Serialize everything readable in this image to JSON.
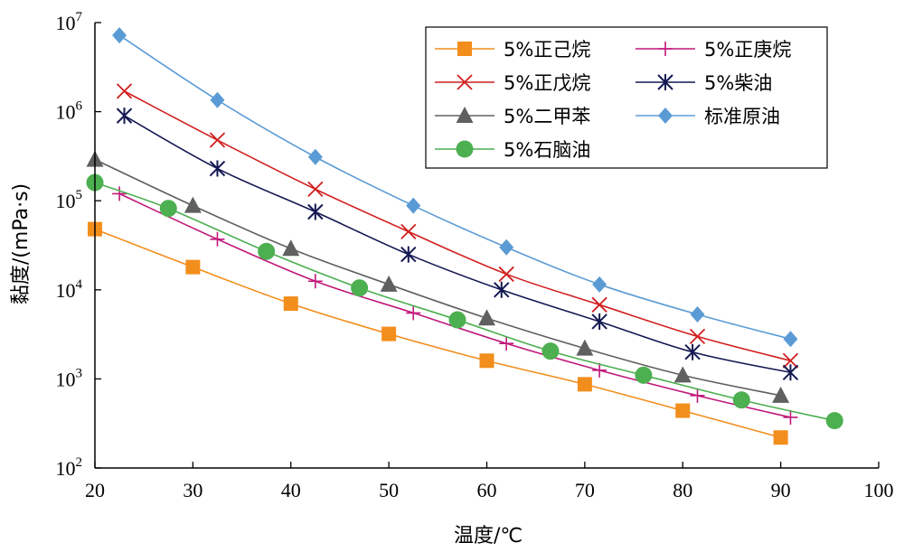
{
  "chart_data": {
    "type": "line",
    "xlabel": "温度/℃",
    "ylabel": "黏度/(mPa·s)",
    "xlim": [
      20,
      100
    ],
    "ylim": [
      100,
      10000000
    ],
    "yscale": "log",
    "x_ticks": [
      "20",
      "30",
      "40",
      "50",
      "60",
      "70",
      "80",
      "90",
      "100"
    ],
    "x_tick_values": [
      20,
      30,
      40,
      50,
      60,
      70,
      80,
      90,
      100
    ],
    "y_ticks": [
      {
        "base": "10",
        "exp": "2",
        "value": 100
      },
      {
        "base": "10",
        "exp": "3",
        "value": 1000
      },
      {
        "base": "10",
        "exp": "4",
        "value": 10000
      },
      {
        "base": "10",
        "exp": "5",
        "value": 100000
      },
      {
        "base": "10",
        "exp": "6",
        "value": 1000000
      },
      {
        "base": "10",
        "exp": "7",
        "value": 10000000
      }
    ],
    "grid": false,
    "legend_position": "top-right",
    "series": [
      {
        "name": "5%正己烷",
        "color": "#f28e1c",
        "marker": "square",
        "x": [
          20,
          30,
          40,
          50,
          60,
          70,
          80,
          90
        ],
        "y": [
          48000,
          18000,
          7000,
          3200,
          1600,
          870,
          440,
          220
        ]
      },
      {
        "name": "5%正庚烷",
        "color": "#c0187a",
        "marker": "plus",
        "x": [
          22.5,
          32.5,
          42.5,
          52.5,
          62,
          71.5,
          81.5,
          91
        ],
        "y": [
          120000,
          37000,
          12500,
          5500,
          2500,
          1250,
          650,
          370
        ]
      },
      {
        "name": "5%正戊烷",
        "color": "#d21f1f",
        "marker": "x",
        "x": [
          23,
          32.5,
          42.5,
          52,
          62,
          71.5,
          81.5,
          91
        ],
        "y": [
          1700000,
          480000,
          135000,
          45000,
          15000,
          6800,
          3000,
          1600
        ]
      },
      {
        "name": "5%柴油",
        "color": "#141852",
        "marker": "star",
        "x": [
          23,
          32.5,
          42.5,
          52,
          61.5,
          71.5,
          81,
          91
        ],
        "y": [
          900000,
          230000,
          75000,
          25000,
          10000,
          4400,
          2000,
          1180
        ]
      },
      {
        "name": "5%二甲苯",
        "color": "#606060",
        "marker": "triangle",
        "x": [
          20,
          30,
          40,
          50,
          60,
          70,
          80,
          90
        ],
        "y": [
          290000,
          88000,
          29000,
          11500,
          4800,
          2200,
          1100,
          650
        ]
      },
      {
        "name": "标准原油",
        "color": "#5b9bd5",
        "marker": "diamond",
        "x": [
          22.5,
          32.5,
          42.5,
          52.5,
          62,
          71.5,
          81.5,
          91
        ],
        "y": [
          7200000,
          1350000,
          310000,
          88000,
          30000,
          11500,
          5300,
          2800
        ]
      },
      {
        "name": "5%石脑油",
        "color": "#4caf50",
        "marker": "circle",
        "x": [
          20,
          27.5,
          37.5,
          47,
          57,
          66.5,
          76,
          86,
          95.5
        ],
        "y": [
          160000,
          82000,
          27000,
          10500,
          4600,
          2050,
          1100,
          580,
          340
        ]
      }
    ]
  }
}
